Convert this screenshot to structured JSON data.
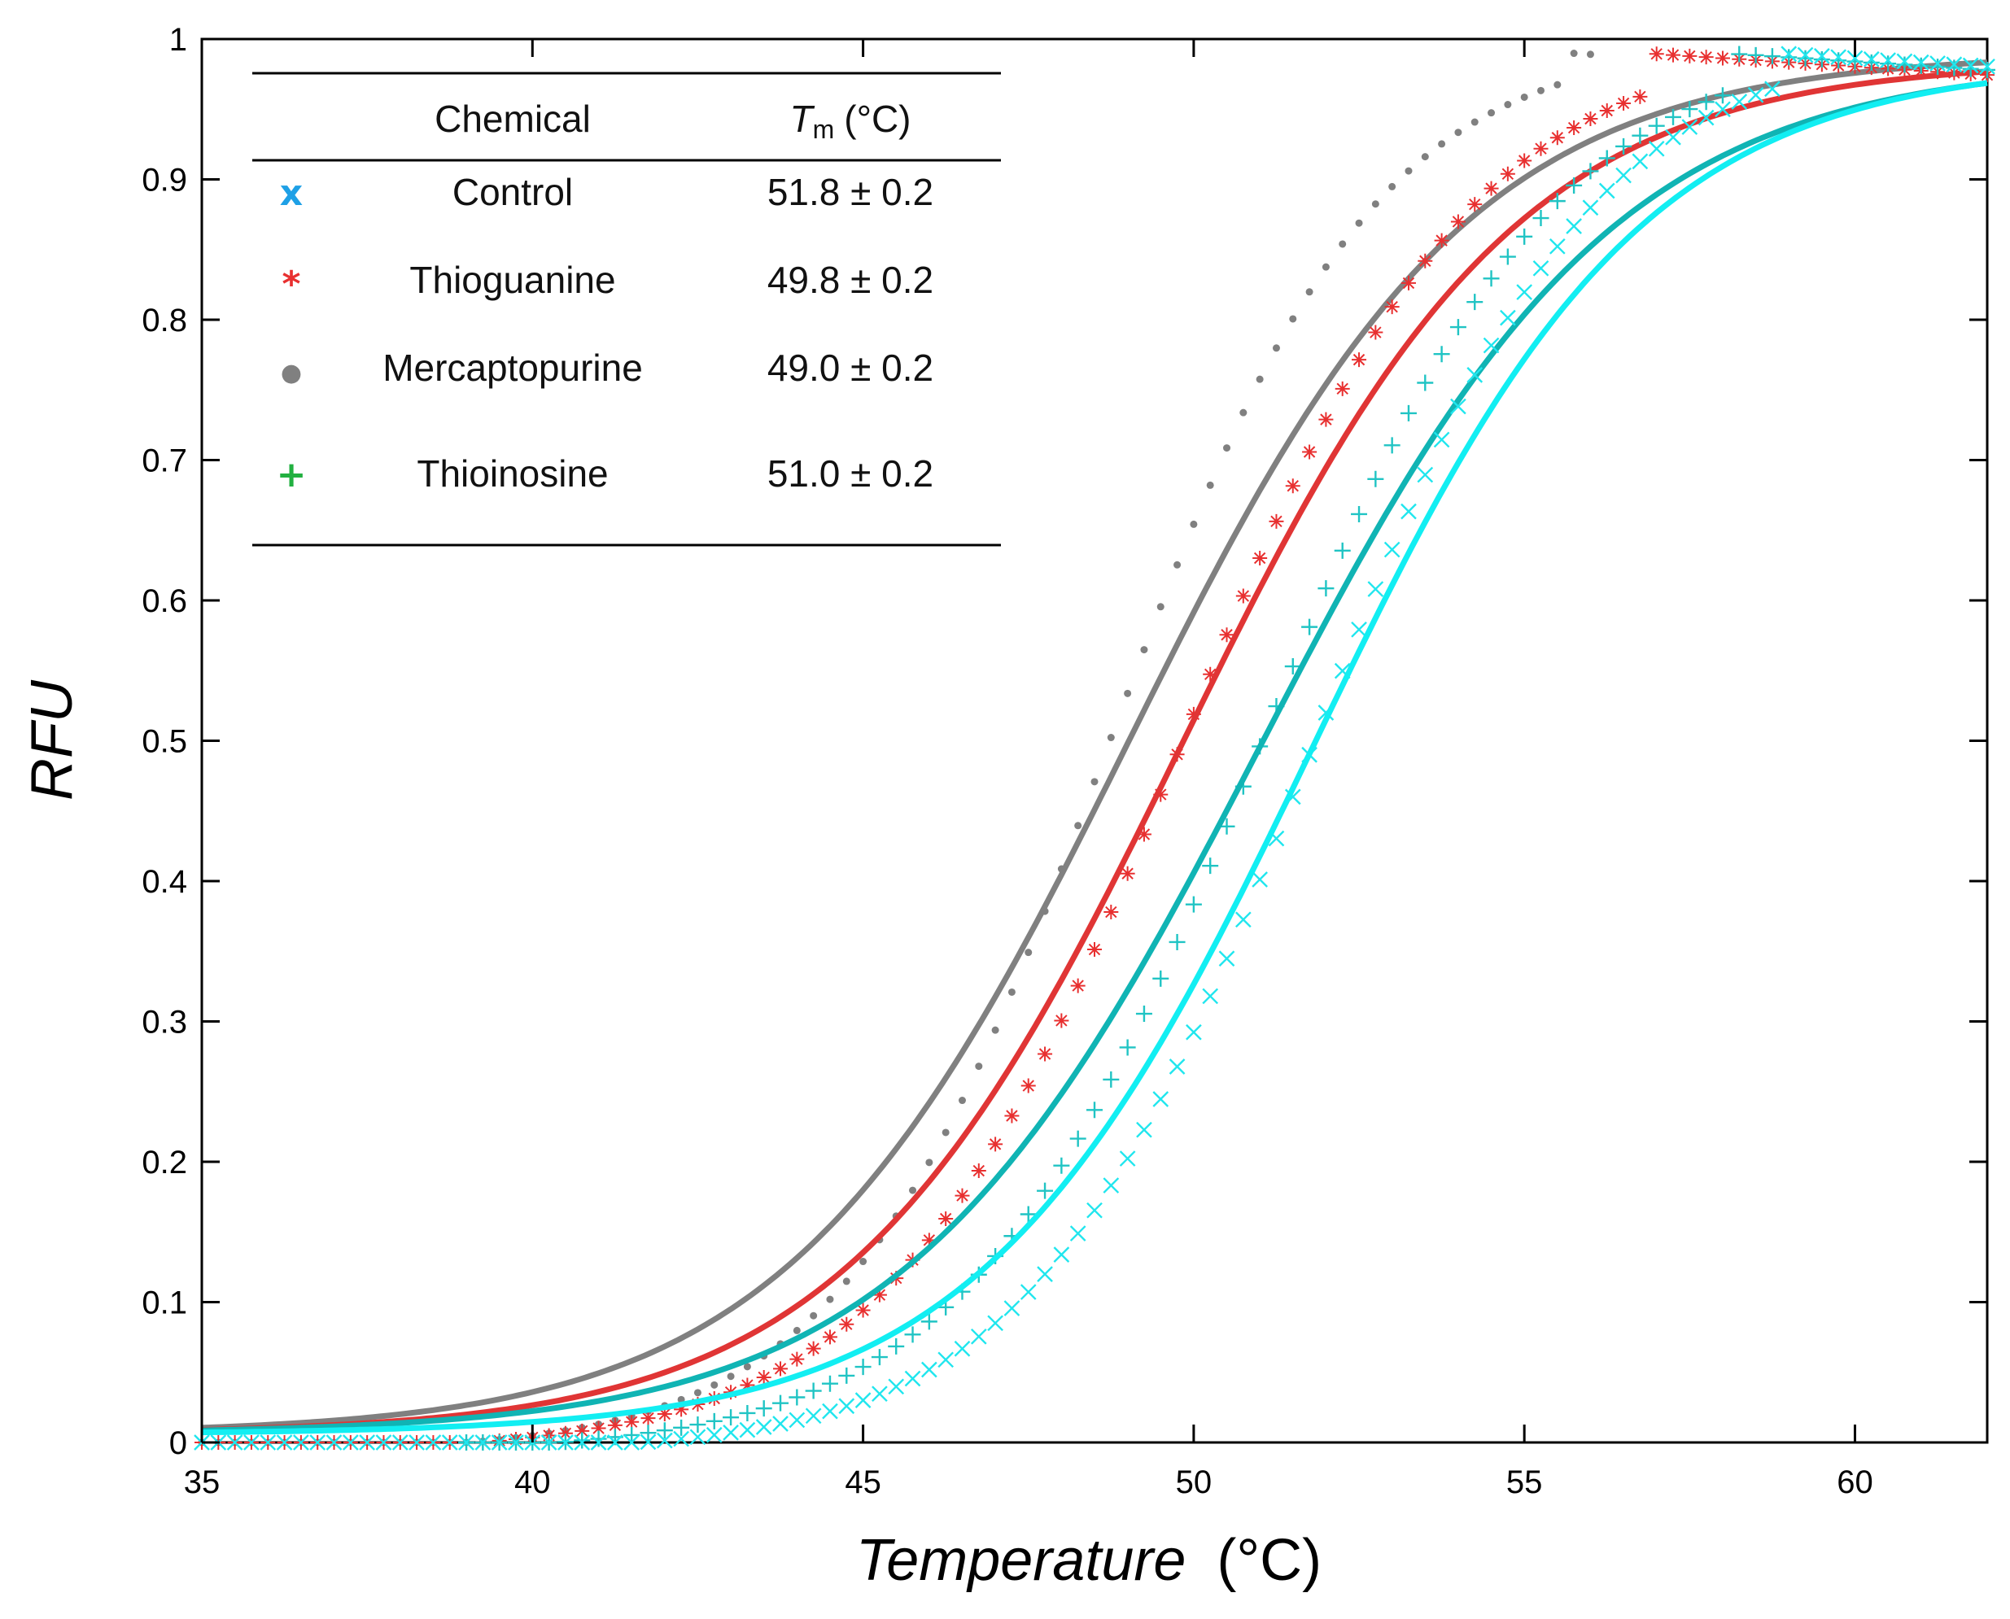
{
  "chart_data": {
    "type": "scatter",
    "title": "",
    "xlabel_italic": "Temperature",
    "xlabel_unit": "(°C)",
    "ylabel": "RFU",
    "xlim": [
      35,
      62
    ],
    "ylim": [
      0,
      1
    ],
    "x_ticks": [
      "35",
      "40",
      "45",
      "50",
      "55",
      "60"
    ],
    "y_ticks": [
      "0",
      "0.1",
      "0.2",
      "0.3",
      "0.4",
      "0.5",
      "0.6",
      "0.7",
      "0.8",
      "0.9",
      "1"
    ],
    "legend": {
      "position": "top-left",
      "header_chemical": "Chemical",
      "header_tm_symbol": "T",
      "header_tm_sub": "m",
      "header_tm_unit": "(°C)",
      "rows": [
        {
          "marker_symbol": "x",
          "marker_color": "#1ea0e6",
          "chemical": "Control",
          "tm": "51.8 ± 0.2"
        },
        {
          "marker_symbol": "*",
          "marker_color": "#e83030",
          "chemical": "Thioguanine",
          "tm": "49.8 ± 0.2"
        },
        {
          "marker_symbol": "●",
          "marker_color": "#808080",
          "chemical": "Mercaptopurine",
          "tm": "49.0 ± 0.2"
        },
        {
          "marker_symbol": "+",
          "marker_color": "#22b040",
          "chemical": "Thioinosine",
          "tm": "51.0 ± 0.2"
        }
      ]
    },
    "series": [
      {
        "name": "Mercaptopurine",
        "marker": "dot",
        "marker_color": "#808080",
        "fit_color": "#808080",
        "tm": 48.7,
        "slope": 2.0,
        "fit_tm": 49.0,
        "fit_slope": 2.6,
        "fit_base": 0.006,
        "fit_top": 0.99,
        "data_x_start": 35,
        "data_x_end": 56,
        "step": 0.25
      },
      {
        "name": "Thioguanine",
        "marker": "asterisk",
        "marker_color": "#e83030",
        "fit_color": "#e03535",
        "tm": 49.8,
        "slope": 2.2,
        "fit_tm": 49.8,
        "fit_slope": 2.55,
        "fit_base": 0.006,
        "fit_top": 0.985,
        "data_x_start": 35,
        "data_x_end": 62,
        "step": 0.25
      },
      {
        "name": "Thioinosine",
        "marker": "plus",
        "marker_color": "#20c4c4",
        "fit_color": "#10b4b4",
        "tm": 51.0,
        "slope": 2.2,
        "fit_tm": 51.0,
        "fit_slope": 2.7,
        "fit_base": 0.006,
        "fit_top": 0.985,
        "data_x_start": 39,
        "data_x_end": 62,
        "step": 0.25
      },
      {
        "name": "Control",
        "marker": "x",
        "marker_color": "#20e6ee",
        "fit_color": "#12eef2",
        "tm": 51.8,
        "slope": 2.1,
        "fit_tm": 51.8,
        "fit_slope": 2.5,
        "fit_base": 0.006,
        "fit_top": 0.985,
        "data_x_start": 35,
        "data_x_end": 62,
        "step": 0.25
      }
    ]
  }
}
